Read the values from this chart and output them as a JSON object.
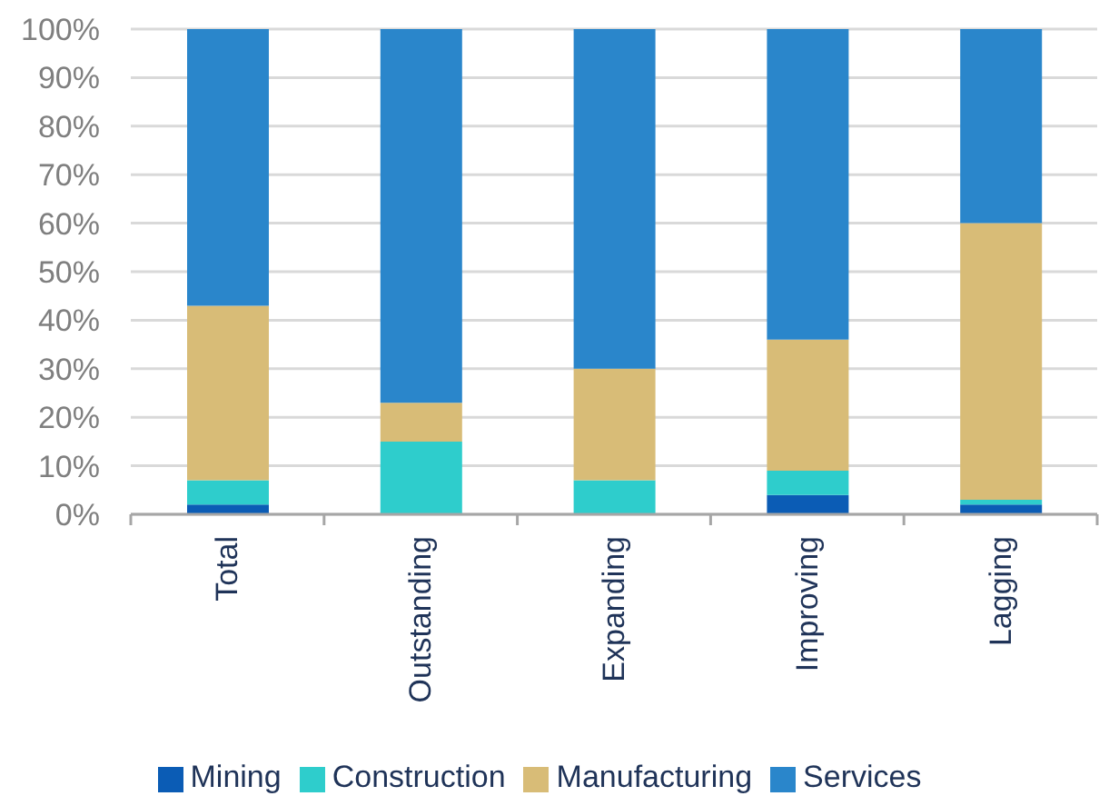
{
  "chart_data": {
    "type": "bar",
    "stacked": true,
    "categories": [
      "Total",
      "Outstanding",
      "Expanding",
      "Improving",
      "Lagging"
    ],
    "series": [
      {
        "name": "Mining",
        "color": "#0b5cb5",
        "values": [
          2,
          0,
          0,
          4,
          2
        ]
      },
      {
        "name": "Construction",
        "color": "#2ecdcc",
        "values": [
          5,
          15,
          7,
          5,
          1
        ]
      },
      {
        "name": "Manufacturing",
        "color": "#d8bc77",
        "values": [
          36,
          8,
          23,
          27,
          57
        ]
      },
      {
        "name": "Services",
        "color": "#2a86cb",
        "values": [
          57,
          77,
          70,
          64,
          40
        ]
      }
    ],
    "ylim": [
      0,
      100
    ],
    "yticks": [
      {
        "value": 0,
        "label": "0%"
      },
      {
        "value": 10,
        "label": "10%"
      },
      {
        "value": 20,
        "label": "20%"
      },
      {
        "value": 30,
        "label": "30%"
      },
      {
        "value": 40,
        "label": "40%"
      },
      {
        "value": 50,
        "label": "50%"
      },
      {
        "value": 60,
        "label": "60%"
      },
      {
        "value": 70,
        "label": "70%"
      },
      {
        "value": 80,
        "label": "80%"
      },
      {
        "value": 90,
        "label": "90%"
      },
      {
        "value": 100,
        "label": "100%"
      }
    ],
    "grid": "y",
    "legend": "bottom"
  }
}
